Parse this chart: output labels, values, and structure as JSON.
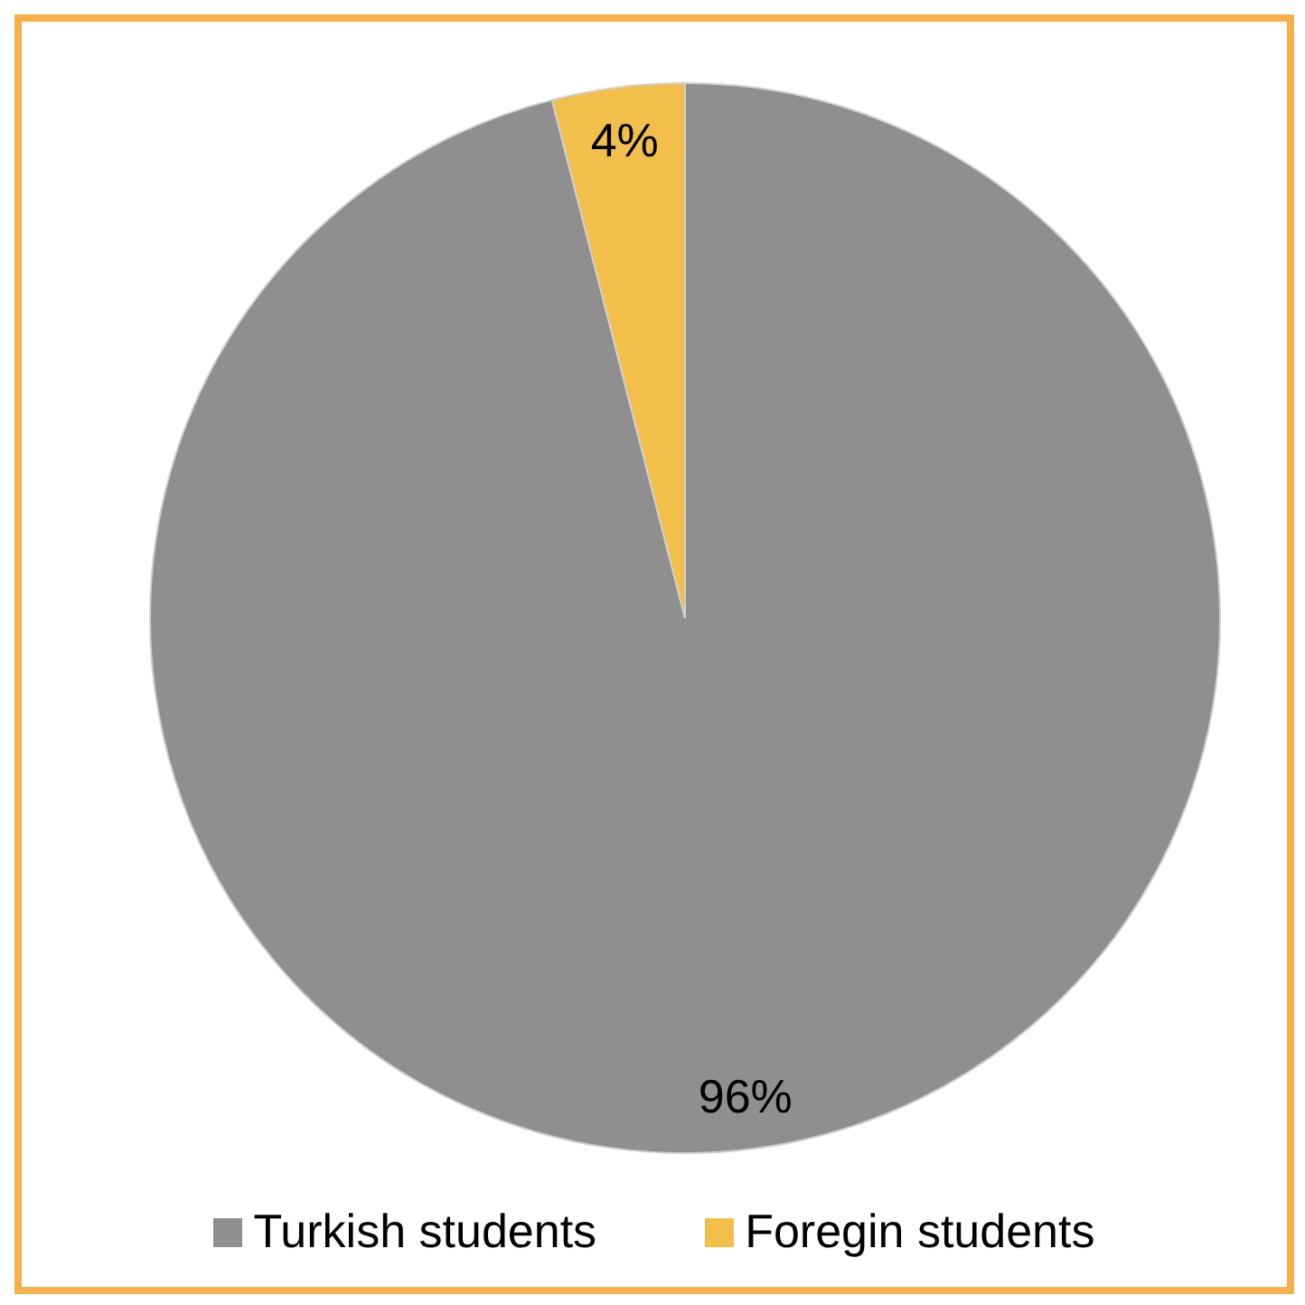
{
  "chart_data": {
    "type": "pie",
    "categories": [
      "Turkish students",
      "Foregin students"
    ],
    "values": [
      96,
      4
    ],
    "colors": [
      "#8f8f8f",
      "#f2c04a"
    ],
    "value_labels": [
      "96%",
      "4%"
    ],
    "legend": "bottom"
  }
}
